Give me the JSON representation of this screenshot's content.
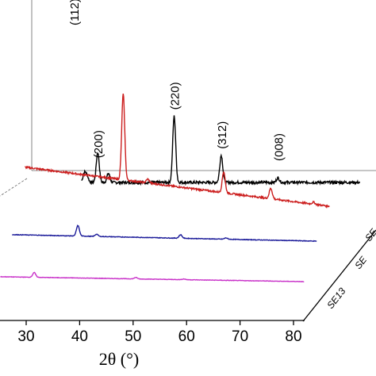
{
  "chart_data": {
    "type": "line",
    "title": "",
    "xlabel": "2θ (°)",
    "ylabel": "",
    "xlim": [
      25,
      82
    ],
    "x_ticks": [
      "30",
      "40",
      "50",
      "60",
      "70",
      "80"
    ],
    "peak_labels": [
      {
        "text": "(112)",
        "x": 28.5
      },
      {
        "text": "(200)",
        "x": 33.0
      },
      {
        "text": "(220)",
        "x": 47.3
      },
      {
        "text": "(312)",
        "x": 56.1
      },
      {
        "text": "(008)",
        "x": 66.7
      }
    ],
    "series": [
      {
        "name": "",
        "color": "#000000",
        "baseline": 230,
        "x0": 36,
        "x1": 474,
        "start": 30,
        "end": 82,
        "peaks": [
          [
            30.5,
            0.06
          ],
          [
            31.0,
            0.04
          ],
          [
            33.0,
            0.12
          ],
          [
            35.0,
            0.06
          ],
          [
            28.5,
            1.0
          ],
          [
            27.3,
            0.07
          ],
          [
            33.0,
            0.08
          ],
          [
            47.3,
            0.44
          ],
          [
            56.1,
            0.18
          ],
          [
            66.7,
            0.03
          ]
        ]
      },
      {
        "name": "",
        "color": "#cc1f1f",
        "baseline": 260,
        "x0": 0,
        "x1": 468,
        "start": 25,
        "end": 82,
        "peaks": [
          [
            43.4,
            0.9
          ],
          [
            48.0,
            0.04
          ],
          [
            62.2,
            0.22
          ],
          [
            71.0,
            0.11
          ],
          [
            79.0,
            0.02
          ]
        ]
      },
      {
        "name": "",
        "color": "#1a1a99",
        "baseline": 304,
        "x0": 0,
        "x1": 430,
        "start": 25,
        "end": 82,
        "peaks": [
          [
            37.3,
            0.33
          ],
          [
            40.8,
            0.07
          ],
          [
            56.5,
            0.11
          ],
          [
            65.0,
            0.04
          ]
        ]
      },
      {
        "name": "SE13",
        "color": "#c830c8",
        "baseline": 355,
        "x0": 0,
        "x1": 390,
        "start": 25,
        "end": 82,
        "peaks": [
          [
            31.5,
            0.2
          ],
          [
            50.5,
            0.06
          ],
          [
            59.5,
            0.03
          ]
        ]
      }
    ],
    "sample_labels": [
      "SE13",
      "SE",
      "SE"
    ],
    "grid": false
  }
}
